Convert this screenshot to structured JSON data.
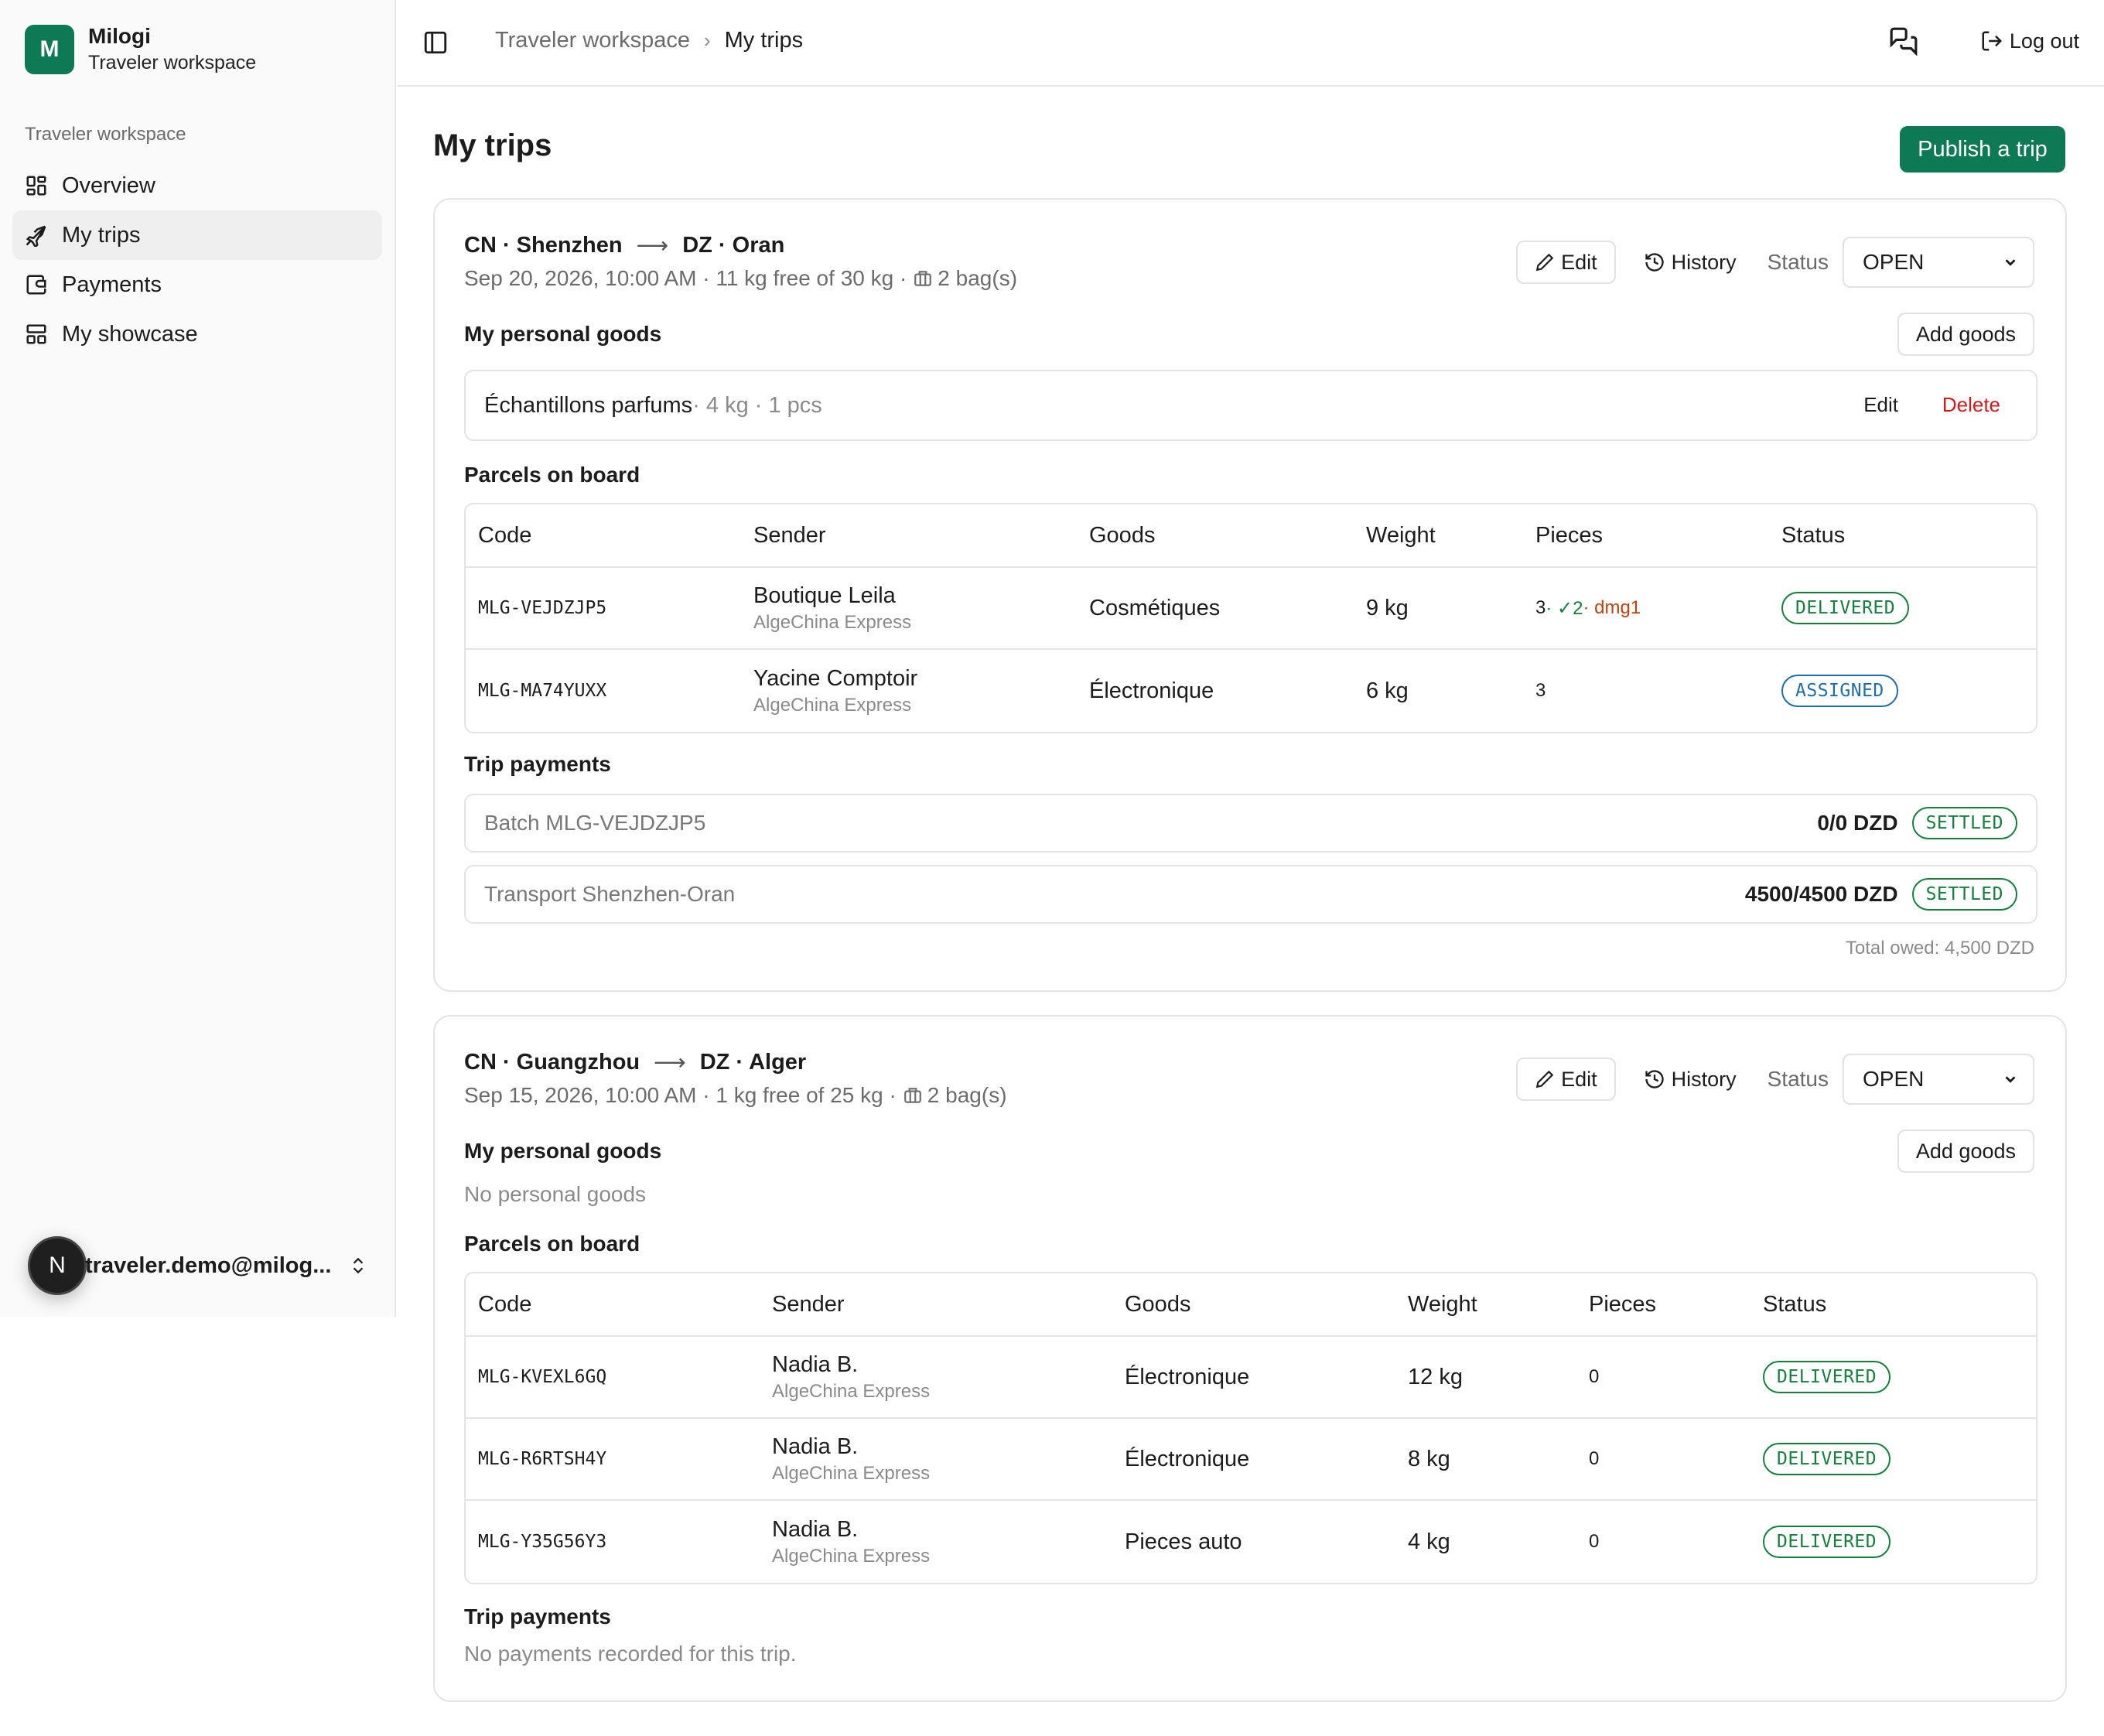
{
  "brand": {
    "initial": "M",
    "name": "Milogi",
    "subtitle": "Traveler workspace"
  },
  "sidebar": {
    "group_label": "Traveler workspace",
    "items": [
      {
        "label": "Overview",
        "icon": "grid-icon"
      },
      {
        "label": "My trips",
        "icon": "plane-icon",
        "active": true
      },
      {
        "label": "Payments",
        "icon": "wallet-icon"
      },
      {
        "label": "My showcase",
        "icon": "layout-icon"
      }
    ],
    "user": {
      "initial": "N",
      "email": "traveler.demo@milog..."
    }
  },
  "header": {
    "breadcrumb": [
      "Traveler workspace",
      "My trips"
    ],
    "logout_label": "Log out"
  },
  "page": {
    "title": "My trips",
    "publish_label": "Publish a trip"
  },
  "labels": {
    "edit": "Edit",
    "history": "History",
    "status": "Status",
    "personal_goods": "My personal goods",
    "add_goods": "Add goods",
    "parcels": "Parcels on board",
    "trip_payments": "Trip payments",
    "delete": "Delete",
    "columns": [
      "Code",
      "Sender",
      "Goods",
      "Weight",
      "Pieces",
      "Status"
    ]
  },
  "trips": [
    {
      "from": "CN · Shenzhen",
      "to": "DZ · Oran",
      "arrow": "⟶",
      "meta": "Sep 20, 2026, 10:00 AM · 11 kg free of 30 kg ·",
      "bags": "2 bag(s)",
      "status": "OPEN",
      "goods": [
        {
          "name": "Échantillons parfums",
          "detail": " · 4 kg · 1 pcs"
        }
      ],
      "parcels": [
        {
          "code": "MLG-VEJDZJP5",
          "sender": "Boutique Leila",
          "company": "AlgeChina Express",
          "goods": "Cosmétiques",
          "weight": "9 kg",
          "pieces": "3",
          "pieces_ok": " · ✓2",
          "pieces_dmg": " · dmg1",
          "status": "DELIVERED"
        },
        {
          "code": "MLG-MA74YUXX",
          "sender": "Yacine Comptoir",
          "company": "AlgeChina Express",
          "goods": "Électronique",
          "weight": "6 kg",
          "pieces": "3",
          "pieces_ok": "",
          "pieces_dmg": "",
          "status": "ASSIGNED"
        }
      ],
      "payments": [
        {
          "label": "Batch MLG-VEJDZJP5",
          "amount": "0/0 DZD",
          "status": "SETTLED"
        },
        {
          "label": "Transport Shenzhen-Oran",
          "amount": "4500/4500 DZD",
          "status": "SETTLED"
        }
      ],
      "total_owed": "Total owed: 4,500 DZD"
    },
    {
      "from": "CN · Guangzhou",
      "to": "DZ · Alger",
      "arrow": "⟶",
      "meta": "Sep 15, 2026, 10:00 AM · 1 kg free of 25 kg ·",
      "bags": "2 bag(s)",
      "status": "OPEN",
      "no_goods": "No personal goods",
      "parcels": [
        {
          "code": "MLG-KVEXL6GQ",
          "sender": "Nadia B.",
          "company": "AlgeChina Express",
          "goods": "Électronique",
          "weight": "12 kg",
          "pieces": "0",
          "status": "DELIVERED"
        },
        {
          "code": "MLG-R6RTSH4Y",
          "sender": "Nadia B.",
          "company": "AlgeChina Express",
          "goods": "Électronique",
          "weight": "8 kg",
          "pieces": "0",
          "status": "DELIVERED"
        },
        {
          "code": "MLG-Y35G56Y3",
          "sender": "Nadia B.",
          "company": "AlgeChina Express",
          "goods": "Pieces auto",
          "weight": "4 kg",
          "pieces": "0",
          "status": "DELIVERED"
        }
      ],
      "no_payments": "No payments recorded for this trip."
    }
  ],
  "colors": {
    "accent": "#0d7a55",
    "delivered": "#15803d",
    "assigned": "#1d6fa5",
    "danger": "#d11a1a"
  }
}
